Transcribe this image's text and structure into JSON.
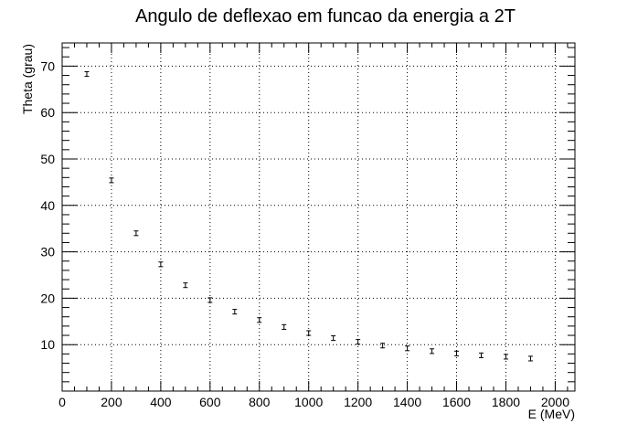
{
  "chart_data": {
    "type": "scatter",
    "title": "Angulo de deflexao em funcao da energia a 2T",
    "xlabel": "E (MeV)",
    "ylabel": "Theta (grau)",
    "xlim": [
      0,
      2080
    ],
    "ylim": [
      0,
      75
    ],
    "grid": true,
    "x_ticks": [
      0,
      200,
      400,
      600,
      800,
      1000,
      1200,
      1400,
      1600,
      1800,
      2000
    ],
    "y_ticks": [
      10,
      20,
      30,
      40,
      50,
      60,
      70
    ],
    "error_bars": true,
    "points": [
      {
        "x": 100,
        "y": 68.3,
        "err": 0.5
      },
      {
        "x": 200,
        "y": 45.4,
        "err": 0.5
      },
      {
        "x": 300,
        "y": 34.0,
        "err": 0.5
      },
      {
        "x": 400,
        "y": 27.3,
        "err": 0.5
      },
      {
        "x": 500,
        "y": 22.8,
        "err": 0.5
      },
      {
        "x": 600,
        "y": 19.6,
        "err": 0.5
      },
      {
        "x": 700,
        "y": 17.1,
        "err": 0.5
      },
      {
        "x": 800,
        "y": 15.3,
        "err": 0.5
      },
      {
        "x": 900,
        "y": 13.8,
        "err": 0.5
      },
      {
        "x": 1000,
        "y": 12.5,
        "err": 0.5
      },
      {
        "x": 1100,
        "y": 11.4,
        "err": 0.5
      },
      {
        "x": 1200,
        "y": 10.6,
        "err": 0.5
      },
      {
        "x": 1300,
        "y": 9.8,
        "err": 0.5
      },
      {
        "x": 1400,
        "y": 9.2,
        "err": 0.5
      },
      {
        "x": 1500,
        "y": 8.6,
        "err": 0.5
      },
      {
        "x": 1600,
        "y": 8.1,
        "err": 0.5
      },
      {
        "x": 1700,
        "y": 7.7,
        "err": 0.5
      },
      {
        "x": 1800,
        "y": 7.4,
        "err": 0.5
      },
      {
        "x": 1900,
        "y": 7.0,
        "err": 0.5
      }
    ]
  }
}
